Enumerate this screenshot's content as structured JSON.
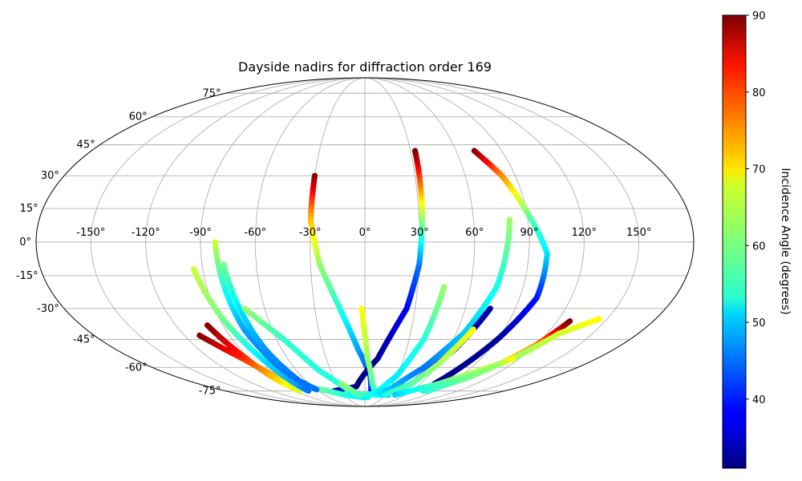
{
  "chart_data": {
    "type": "scatter",
    "projection": "mollweide",
    "title": "Dayside nadirs for diffraction order 169",
    "grid": true,
    "lon_ticks": [
      "-150°",
      "-120°",
      "-90°",
      "-60°",
      "-30°",
      "0°",
      "30°",
      "60°",
      "90°",
      "120°",
      "150°"
    ],
    "lat_ticks": [
      "75°",
      "60°",
      "45°",
      "30°",
      "15°",
      "0°",
      "-15°",
      "-30°",
      "-45°",
      "-60°",
      "-75°"
    ],
    "colorbar": {
      "label": "Incidence Angle (degrees)",
      "colormap": "jet",
      "range": [
        31,
        90
      ],
      "ticks": [
        "40",
        "50",
        "60",
        "70",
        "80",
        "90"
      ]
    },
    "series": [
      {
        "points": [
          [
            -30,
            30,
            90
          ],
          [
            -30,
            10,
            72
          ],
          [
            -25,
            -10,
            62
          ],
          [
            -15,
            -30,
            55
          ],
          [
            -5,
            -50,
            48
          ],
          [
            5,
            -65,
            42
          ],
          [
            8,
            -75,
            40
          ]
        ]
      },
      {
        "points": [
          [
            -40,
            -75,
            35
          ],
          [
            -10,
            -72,
            31
          ],
          [
            10,
            -55,
            32
          ],
          [
            25,
            -30,
            38
          ],
          [
            30,
            -10,
            45
          ],
          [
            32,
            15,
            65
          ],
          [
            33,
            42,
            90
          ]
        ]
      },
      {
        "points": [
          [
            72,
            42,
            90
          ],
          [
            82,
            30,
            75
          ],
          [
            92,
            10,
            58
          ],
          [
            100,
            -5,
            52
          ],
          [
            100,
            -25,
            40
          ],
          [
            90,
            -45,
            33
          ],
          [
            75,
            -70,
            31
          ]
        ]
      },
      {
        "points": [
          [
            -110,
            -43,
            90
          ],
          [
            -95,
            -55,
            80
          ],
          [
            -85,
            -65,
            72
          ],
          [
            -60,
            -73,
            60
          ],
          [
            -30,
            -78,
            55
          ],
          [
            0,
            -80,
            52
          ]
        ]
      },
      {
        "points": [
          [
            -100,
            -38,
            90
          ],
          [
            -92,
            -55,
            80
          ],
          [
            -88,
            -68,
            70
          ],
          [
            -85,
            -75,
            65
          ]
        ]
      },
      {
        "points": [
          [
            -95,
            -12,
            65
          ],
          [
            -88,
            -35,
            60
          ],
          [
            -80,
            -55,
            52
          ],
          [
            -75,
            -70,
            48
          ],
          [
            -73,
            -75,
            45
          ]
        ]
      },
      {
        "points": [
          [
            -82,
            0,
            65
          ],
          [
            -80,
            -20,
            55
          ],
          [
            -78,
            -40,
            48
          ],
          [
            -72,
            -60,
            45
          ],
          [
            -65,
            -72,
            45
          ]
        ]
      },
      {
        "points": [
          [
            -78,
            -10,
            60
          ],
          [
            -75,
            -30,
            52
          ],
          [
            -72,
            -50,
            47
          ],
          [
            -67,
            -68,
            45
          ],
          [
            -60,
            -74,
            45
          ]
        ]
      },
      {
        "points": [
          [
            -72,
            -30,
            62
          ],
          [
            -55,
            -45,
            56
          ],
          [
            -40,
            -62,
            55
          ],
          [
            -20,
            -75,
            55
          ],
          [
            5,
            -80,
            53
          ]
        ]
      },
      {
        "points": [
          [
            -2,
            -30,
            68
          ],
          [
            2,
            -55,
            62
          ],
          [
            8,
            -70,
            58
          ],
          [
            15,
            -78,
            55
          ],
          [
            35,
            -78,
            50
          ]
        ]
      },
      {
        "points": [
          [
            -25,
            -70,
            62
          ],
          [
            -10,
            -78,
            58
          ],
          [
            15,
            -77,
            54
          ],
          [
            30,
            -65,
            52
          ],
          [
            40,
            -45,
            55
          ],
          [
            45,
            -20,
            62
          ]
        ]
      },
      {
        "points": [
          [
            5,
            -78,
            55
          ],
          [
            30,
            -74,
            50
          ],
          [
            50,
            -60,
            45
          ],
          [
            65,
            -42,
            50
          ],
          [
            75,
            -20,
            54
          ],
          [
            80,
            10,
            62
          ]
        ]
      },
      {
        "points": [
          [
            30,
            -78,
            42
          ],
          [
            50,
            -70,
            40
          ],
          [
            65,
            -50,
            35
          ],
          [
            75,
            -30,
            33
          ]
        ]
      },
      {
        "points": [
          [
            30,
            -78,
            55
          ],
          [
            50,
            -70,
            58
          ],
          [
            60,
            -58,
            62
          ],
          [
            70,
            -40,
            68
          ]
        ]
      },
      {
        "points": [
          [
            45,
            -78,
            50
          ],
          [
            80,
            -70,
            58
          ],
          [
            110,
            -58,
            68
          ],
          [
            120,
            -48,
            75
          ],
          [
            128,
            -36,
            90
          ]
        ]
      },
      {
        "points": [
          [
            75,
            -75,
            55
          ],
          [
            95,
            -68,
            58
          ],
          [
            115,
            -55,
            62
          ],
          [
            128,
            -42,
            65
          ],
          [
            145,
            -35,
            68
          ]
        ]
      },
      {
        "points": [
          [
            80,
            -75,
            55
          ],
          [
            100,
            -66,
            60
          ],
          [
            110,
            -58,
            62
          ],
          [
            115,
            -55,
            68
          ]
        ]
      }
    ]
  }
}
